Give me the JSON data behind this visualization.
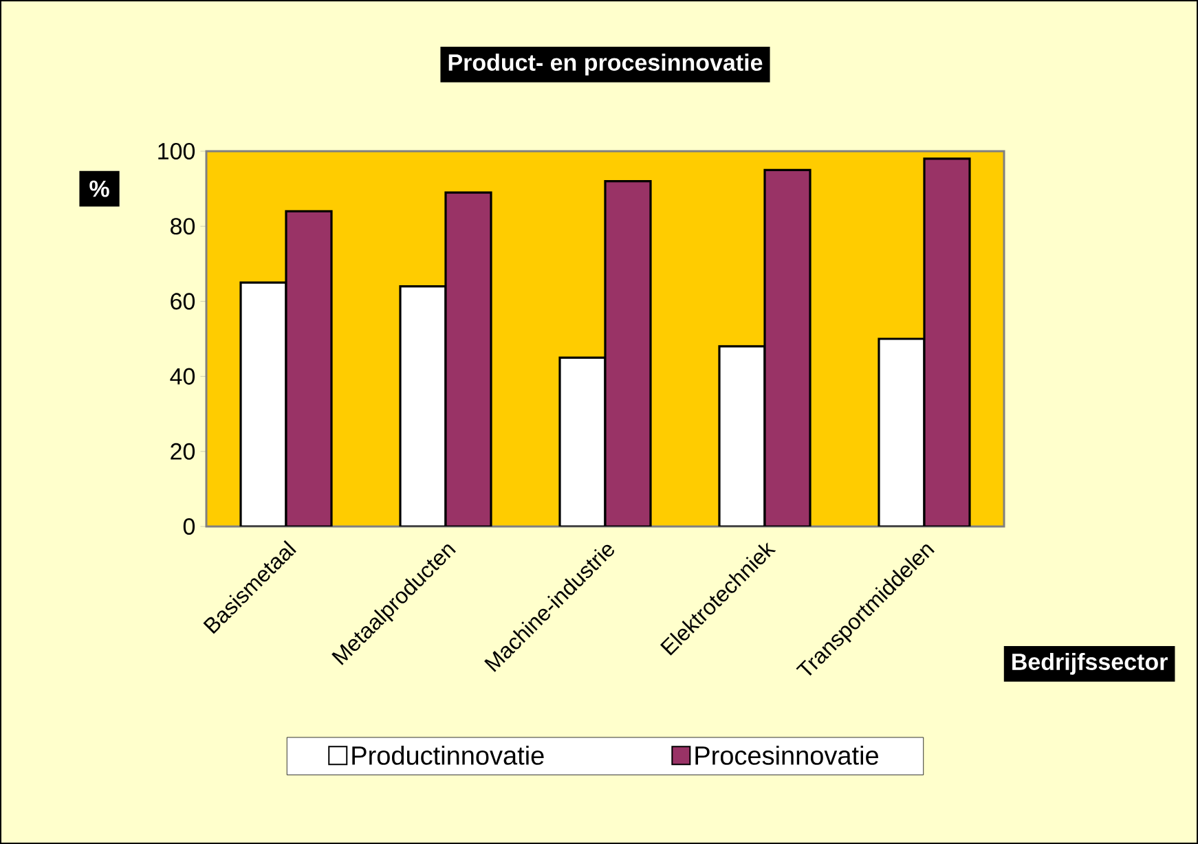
{
  "chart_data": {
    "type": "bar",
    "title": "Product- en procesinnovatie",
    "xlabel": "Bedrijfssector",
    "ylabel": "%",
    "categories": [
      "Basismetaal",
      "Metaalproducten",
      "Machine-industrie",
      "Elektrotechniek",
      "Transportmiddelen"
    ],
    "series": [
      {
        "name": "Productinnovatie",
        "color": "#ffffff",
        "values": [
          65,
          64,
          45,
          48,
          50
        ]
      },
      {
        "name": "Procesinnovatie",
        "color": "#993366",
        "values": [
          84,
          89,
          92,
          95,
          98
        ]
      }
    ],
    "ylim": [
      0,
      100
    ],
    "yticks": [
      0,
      20,
      40,
      60,
      80,
      100
    ],
    "grid": false,
    "legend": "bottom"
  }
}
